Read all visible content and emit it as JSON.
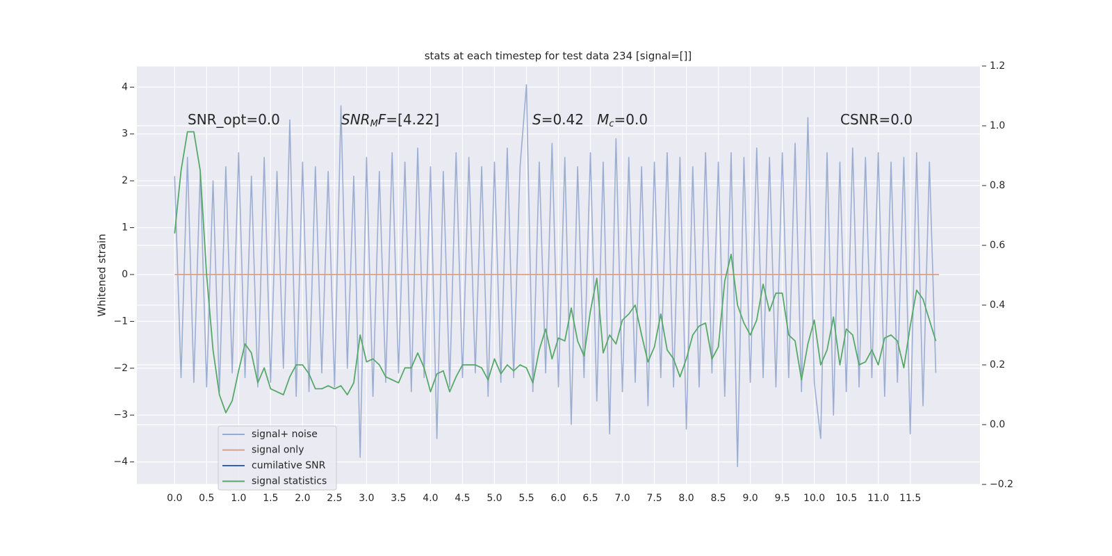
{
  "chart_data": {
    "type": "line",
    "title": "stats at each timestep for test data 234 [signal=[]]",
    "ylabel": "Whitened strain",
    "xlim": [
      -0.59,
      12.59
    ],
    "ylim": [
      -4.48,
      4.45
    ],
    "y2lim": [
      -0.2,
      1.2
    ],
    "xticks": [
      {
        "value": 0,
        "label": "0.0"
      },
      0.5,
      {
        "value": 1,
        "label": "1.0"
      },
      1.5,
      {
        "value": 2,
        "label": "2.0"
      },
      2.5,
      {
        "value": 3,
        "label": "3.0"
      },
      3.5,
      {
        "value": 4,
        "label": "4.0"
      },
      4.5,
      {
        "value": 5,
        "label": "5.0"
      },
      5.5,
      {
        "value": 6,
        "label": "6.0"
      },
      6.5,
      {
        "value": 7,
        "label": "7.0"
      },
      7.5,
      {
        "value": 8,
        "label": "8.0"
      },
      8.5,
      {
        "value": 9,
        "label": "9.0"
      },
      9.5,
      {
        "value": 10,
        "label": "10.0"
      },
      10.5,
      {
        "value": 11,
        "label": "11.0"
      },
      11.5
    ],
    "yticks": [
      {
        "value": -4,
        "label": "−4"
      },
      {
        "value": -3,
        "label": "−3"
      },
      {
        "value": -2,
        "label": "−2"
      },
      {
        "value": -1,
        "label": "−1"
      },
      0,
      1,
      2,
      3,
      4
    ],
    "y2ticks": [
      {
        "value": -0.2,
        "label": "−0.2"
      },
      {
        "value": 0,
        "label": "0.0"
      },
      0.2,
      0.4,
      0.6,
      0.8,
      {
        "value": 1,
        "label": "1.0"
      },
      1.2
    ],
    "grid": true,
    "legend": "lower left",
    "annotations": [
      {
        "segments": [
          {
            "text": "SNR_opt=0.0"
          }
        ]
      },
      {
        "segments": [
          {
            "text": "SNR",
            "italic": true
          },
          {
            "text": "M",
            "italic": true,
            "sub": true
          },
          {
            "text": "F",
            "italic": true
          },
          {
            "text": "=[4.22]"
          }
        ]
      },
      {
        "segments": [
          {
            "text": "S",
            "italic": true
          },
          {
            "text": "=0.42   "
          },
          {
            "text": "M",
            "italic": true
          },
          {
            "text": "c",
            "italic": true,
            "sub": true
          },
          {
            "text": "=0.0"
          }
        ]
      },
      {
        "segments": [
          {
            "text": "CSNR=0.0"
          }
        ]
      }
    ],
    "series": [
      {
        "name": "signal+ noise",
        "color": "#98aad0",
        "x": [
          0,
          0.1,
          0.2,
          0.3,
          0.4,
          0.5,
          0.6,
          0.7,
          0.8,
          0.9,
          1,
          1.1,
          1.2,
          1.3,
          1.4,
          1.5,
          1.6,
          1.7,
          1.8,
          1.9,
          2,
          2.1,
          2.2,
          2.3,
          2.4,
          2.5,
          2.6,
          2.7,
          2.8,
          2.9,
          3,
          3.1,
          3.2,
          3.3,
          3.4,
          3.5,
          3.6,
          3.7,
          3.8,
          3.9,
          4,
          4.1,
          4.2,
          4.3,
          4.4,
          4.5,
          4.6,
          4.7,
          4.8,
          4.9,
          5,
          5.1,
          5.2,
          5.3,
          5.4,
          5.5,
          5.6,
          5.7,
          5.8,
          5.9,
          6,
          6.1,
          6.2,
          6.3,
          6.4,
          6.5,
          6.6,
          6.7,
          6.8,
          6.9,
          7,
          7.1,
          7.2,
          7.3,
          7.4,
          7.5,
          7.6,
          7.7,
          7.8,
          7.9,
          8,
          8.1,
          8.2,
          8.3,
          8.4,
          8.5,
          8.6,
          8.7,
          8.8,
          8.9,
          9,
          9.1,
          9.2,
          9.3,
          9.4,
          9.5,
          9.6,
          9.7,
          9.8,
          9.9,
          10,
          10.1,
          10.2,
          10.3,
          10.4,
          10.5,
          10.6,
          10.7,
          10.8,
          10.9,
          11,
          11.1,
          11.2,
          11.3,
          11.4,
          11.5,
          11.6,
          11.7,
          11.8,
          11.9
        ],
        "values": [
          2.1,
          -2.2,
          2.5,
          -2.3,
          2.2,
          -2.4,
          2.0,
          -2.5,
          2.3,
          -2.1,
          2.6,
          -2.2,
          2.1,
          -2.4,
          2.5,
          -2.3,
          2.2,
          -2.0,
          3.3,
          -2.6,
          2.4,
          -2.5,
          2.3,
          -2.1,
          2.2,
          -2.4,
          3.6,
          -2.0,
          2.1,
          -3.9,
          2.5,
          -2.6,
          2.2,
          -2.3,
          2.6,
          -2.1,
          2.4,
          -2.5,
          2.7,
          -2.2,
          2.3,
          -3.5,
          2.2,
          -2.4,
          2.6,
          -2.2,
          2.5,
          -2.1,
          2.3,
          -2.6,
          2.4,
          -2.3,
          2.7,
          -2.2,
          2.3,
          4.05,
          -2.5,
          2.4,
          -2.1,
          2.8,
          -2.4,
          2.5,
          -3.2,
          2.3,
          -2.2,
          2.6,
          -2.7,
          2.4,
          -3.4,
          2.9,
          -2.5,
          2.5,
          -2.3,
          2.3,
          -2.8,
          2.4,
          -2.2,
          2.6,
          -2.4,
          2.5,
          -3.3,
          2.3,
          -2.4,
          2.6,
          -2.1,
          2.4,
          -2.6,
          2.6,
          -4.1,
          2.5,
          -2.3,
          2.7,
          -2.2,
          2.5,
          -2.4,
          2.6,
          -2.2,
          2.8,
          -2.5,
          3.35,
          -2.3,
          -3.5,
          2.6,
          -3.0,
          2.4,
          -2.5,
          2.7,
          -2.4,
          2.5,
          -2.2,
          2.6,
          -2.6,
          2.4,
          -2.3,
          2.5,
          -3.4,
          2.6,
          -2.8,
          2.4,
          -2.1
        ]
      },
      {
        "name": "signal only",
        "color": "#dd9f88",
        "x": [
          0,
          11.95
        ],
        "values": [
          0,
          0
        ]
      },
      {
        "name": "cumilative SNR",
        "color": "#3a5ea8",
        "x": [],
        "values": []
      },
      {
        "name": "signal statistics",
        "color": "#55a868",
        "axis": "y2",
        "x": [
          0,
          0.1,
          0.2,
          0.3,
          0.4,
          0.5,
          0.6,
          0.7,
          0.8,
          0.9,
          1,
          1.1,
          1.2,
          1.3,
          1.4,
          1.5,
          1.6,
          1.7,
          1.8,
          1.9,
          2,
          2.1,
          2.2,
          2.3,
          2.4,
          2.5,
          2.6,
          2.7,
          2.8,
          2.9,
          3,
          3.1,
          3.2,
          3.3,
          3.4,
          3.5,
          3.6,
          3.7,
          3.8,
          3.9,
          4,
          4.1,
          4.2,
          4.3,
          4.4,
          4.5,
          4.6,
          4.7,
          4.8,
          4.9,
          5,
          5.1,
          5.2,
          5.3,
          5.4,
          5.5,
          5.6,
          5.7,
          5.8,
          5.9,
          6,
          6.1,
          6.2,
          6.3,
          6.4,
          6.5,
          6.6,
          6.7,
          6.8,
          6.9,
          7,
          7.1,
          7.2,
          7.3,
          7.4,
          7.5,
          7.6,
          7.7,
          7.8,
          7.9,
          8,
          8.1,
          8.2,
          8.3,
          8.4,
          8.5,
          8.6,
          8.7,
          8.8,
          8.9,
          9,
          9.1,
          9.2,
          9.3,
          9.4,
          9.5,
          9.6,
          9.7,
          9.8,
          9.9,
          10,
          10.1,
          10.2,
          10.3,
          10.4,
          10.5,
          10.6,
          10.7,
          10.8,
          10.9,
          11,
          11.1,
          11.2,
          11.3,
          11.4,
          11.5,
          11.6,
          11.7,
          11.8,
          11.9
        ],
        "values": [
          0.64,
          0.85,
          0.98,
          0.98,
          0.85,
          0.5,
          0.25,
          0.1,
          0.04,
          0.08,
          0.18,
          0.27,
          0.24,
          0.14,
          0.19,
          0.12,
          0.11,
          0.1,
          0.16,
          0.2,
          0.2,
          0.17,
          0.12,
          0.12,
          0.13,
          0.12,
          0.13,
          0.1,
          0.14,
          0.3,
          0.21,
          0.22,
          0.2,
          0.16,
          0.15,
          0.14,
          0.19,
          0.19,
          0.24,
          0.19,
          0.11,
          0.17,
          0.18,
          0.11,
          0.16,
          0.2,
          0.2,
          0.2,
          0.19,
          0.15,
          0.22,
          0.17,
          0.2,
          0.18,
          0.2,
          0.19,
          0.14,
          0.25,
          0.32,
          0.22,
          0.29,
          0.28,
          0.39,
          0.28,
          0.23,
          0.38,
          0.49,
          0.24,
          0.3,
          0.27,
          0.35,
          0.37,
          0.4,
          0.3,
          0.21,
          0.26,
          0.37,
          0.25,
          0.22,
          0.16,
          0.22,
          0.3,
          0.33,
          0.34,
          0.22,
          0.26,
          0.48,
          0.57,
          0.4,
          0.34,
          0.3,
          0.35,
          0.47,
          0.38,
          0.44,
          0.44,
          0.3,
          0.28,
          0.15,
          0.27,
          0.35,
          0.2,
          0.25,
          0.36,
          0.2,
          0.32,
          0.3,
          0.2,
          0.21,
          0.25,
          0.2,
          0.29,
          0.3,
          0.28,
          0.19,
          0.33,
          0.45,
          0.42,
          0.35,
          0.28
        ]
      }
    ]
  }
}
